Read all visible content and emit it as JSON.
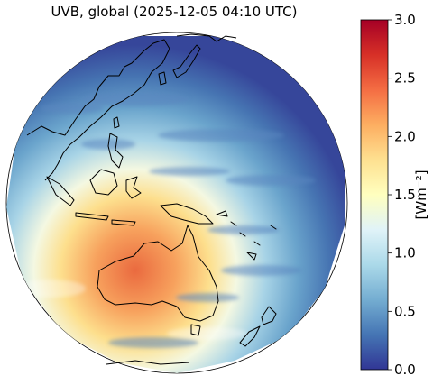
{
  "title": "UVB, global (2025-12-05 04:10 UTC)",
  "colorbar": {
    "unit_label": "[Wm⁻²]",
    "min": 0.0,
    "max": 3.0,
    "ticks": [
      "0.0",
      "0.5",
      "1.0",
      "1.5",
      "2.0",
      "2.5",
      "3.0"
    ],
    "colormap": "RdYlBu_r",
    "colors": [
      "#313695",
      "#4575b4",
      "#74add1",
      "#abd9e9",
      "#e0f3f8",
      "#ffffbf",
      "#fee090",
      "#fdae61",
      "#f46d43",
      "#d73027",
      "#a50026"
    ]
  },
  "map": {
    "projection": "geostationary full disk",
    "region": "Asia-Pacific / Australia",
    "coastline_color": "#000000",
    "space_color": "#ffffff"
  }
}
